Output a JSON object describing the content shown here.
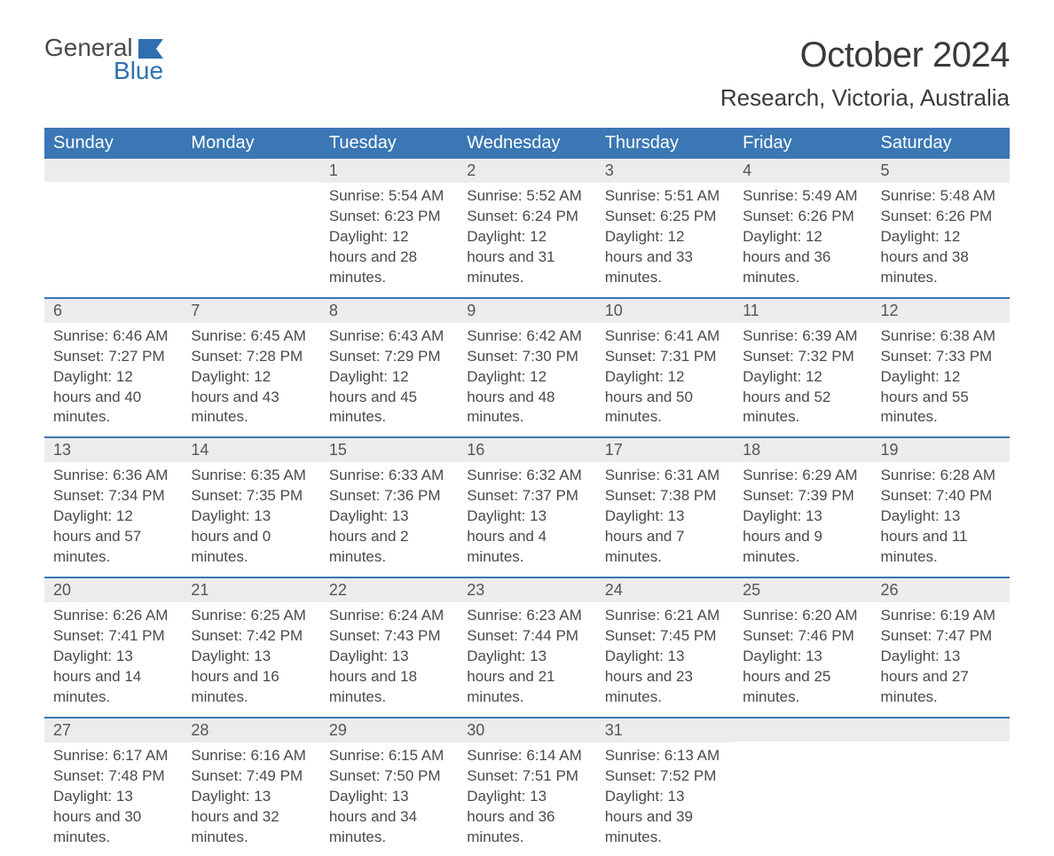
{
  "logo": {
    "general": "General",
    "blue": "Blue",
    "flag_color": "#2f6fb0"
  },
  "title": "October 2024",
  "location": "Research, Victoria, Australia",
  "colors": {
    "header_bg": "#3a77b4",
    "header_fg": "#ffffff",
    "daynum_bg": "#ececec",
    "row_divider": "#3a77b4",
    "body_text": "#4a4a4a",
    "page_bg": "#ffffff",
    "logo_blue": "#2f6fb0"
  },
  "typography": {
    "title_fontsize": 40,
    "location_fontsize": 26,
    "header_fontsize": 20,
    "daynum_fontsize": 18,
    "body_fontsize": 17
  },
  "layout": {
    "columns": 7,
    "rows": 5,
    "leading_blanks": 2,
    "trailing_blanks": 2
  },
  "weekdays": [
    "Sunday",
    "Monday",
    "Tuesday",
    "Wednesday",
    "Thursday",
    "Friday",
    "Saturday"
  ],
  "days": [
    {
      "n": 1,
      "sunrise": "5:54 AM",
      "sunset": "6:23 PM",
      "daylight": "12 hours and 28 minutes."
    },
    {
      "n": 2,
      "sunrise": "5:52 AM",
      "sunset": "6:24 PM",
      "daylight": "12 hours and 31 minutes."
    },
    {
      "n": 3,
      "sunrise": "5:51 AM",
      "sunset": "6:25 PM",
      "daylight": "12 hours and 33 minutes."
    },
    {
      "n": 4,
      "sunrise": "5:49 AM",
      "sunset": "6:26 PM",
      "daylight": "12 hours and 36 minutes."
    },
    {
      "n": 5,
      "sunrise": "5:48 AM",
      "sunset": "6:26 PM",
      "daylight": "12 hours and 38 minutes."
    },
    {
      "n": 6,
      "sunrise": "6:46 AM",
      "sunset": "7:27 PM",
      "daylight": "12 hours and 40 minutes."
    },
    {
      "n": 7,
      "sunrise": "6:45 AM",
      "sunset": "7:28 PM",
      "daylight": "12 hours and 43 minutes."
    },
    {
      "n": 8,
      "sunrise": "6:43 AM",
      "sunset": "7:29 PM",
      "daylight": "12 hours and 45 minutes."
    },
    {
      "n": 9,
      "sunrise": "6:42 AM",
      "sunset": "7:30 PM",
      "daylight": "12 hours and 48 minutes."
    },
    {
      "n": 10,
      "sunrise": "6:41 AM",
      "sunset": "7:31 PM",
      "daylight": "12 hours and 50 minutes."
    },
    {
      "n": 11,
      "sunrise": "6:39 AM",
      "sunset": "7:32 PM",
      "daylight": "12 hours and 52 minutes."
    },
    {
      "n": 12,
      "sunrise": "6:38 AM",
      "sunset": "7:33 PM",
      "daylight": "12 hours and 55 minutes."
    },
    {
      "n": 13,
      "sunrise": "6:36 AM",
      "sunset": "7:34 PM",
      "daylight": "12 hours and 57 minutes."
    },
    {
      "n": 14,
      "sunrise": "6:35 AM",
      "sunset": "7:35 PM",
      "daylight": "13 hours and 0 minutes."
    },
    {
      "n": 15,
      "sunrise": "6:33 AM",
      "sunset": "7:36 PM",
      "daylight": "13 hours and 2 minutes."
    },
    {
      "n": 16,
      "sunrise": "6:32 AM",
      "sunset": "7:37 PM",
      "daylight": "13 hours and 4 minutes."
    },
    {
      "n": 17,
      "sunrise": "6:31 AM",
      "sunset": "7:38 PM",
      "daylight": "13 hours and 7 minutes."
    },
    {
      "n": 18,
      "sunrise": "6:29 AM",
      "sunset": "7:39 PM",
      "daylight": "13 hours and 9 minutes."
    },
    {
      "n": 19,
      "sunrise": "6:28 AM",
      "sunset": "7:40 PM",
      "daylight": "13 hours and 11 minutes."
    },
    {
      "n": 20,
      "sunrise": "6:26 AM",
      "sunset": "7:41 PM",
      "daylight": "13 hours and 14 minutes."
    },
    {
      "n": 21,
      "sunrise": "6:25 AM",
      "sunset": "7:42 PM",
      "daylight": "13 hours and 16 minutes."
    },
    {
      "n": 22,
      "sunrise": "6:24 AM",
      "sunset": "7:43 PM",
      "daylight": "13 hours and 18 minutes."
    },
    {
      "n": 23,
      "sunrise": "6:23 AM",
      "sunset": "7:44 PM",
      "daylight": "13 hours and 21 minutes."
    },
    {
      "n": 24,
      "sunrise": "6:21 AM",
      "sunset": "7:45 PM",
      "daylight": "13 hours and 23 minutes."
    },
    {
      "n": 25,
      "sunrise": "6:20 AM",
      "sunset": "7:46 PM",
      "daylight": "13 hours and 25 minutes."
    },
    {
      "n": 26,
      "sunrise": "6:19 AM",
      "sunset": "7:47 PM",
      "daylight": "13 hours and 27 minutes."
    },
    {
      "n": 27,
      "sunrise": "6:17 AM",
      "sunset": "7:48 PM",
      "daylight": "13 hours and 30 minutes."
    },
    {
      "n": 28,
      "sunrise": "6:16 AM",
      "sunset": "7:49 PM",
      "daylight": "13 hours and 32 minutes."
    },
    {
      "n": 29,
      "sunrise": "6:15 AM",
      "sunset": "7:50 PM",
      "daylight": "13 hours and 34 minutes."
    },
    {
      "n": 30,
      "sunrise": "6:14 AM",
      "sunset": "7:51 PM",
      "daylight": "13 hours and 36 minutes."
    },
    {
      "n": 31,
      "sunrise": "6:13 AM",
      "sunset": "7:52 PM",
      "daylight": "13 hours and 39 minutes."
    }
  ],
  "labels": {
    "sunrise": "Sunrise:",
    "sunset": "Sunset:",
    "daylight": "Daylight:"
  }
}
